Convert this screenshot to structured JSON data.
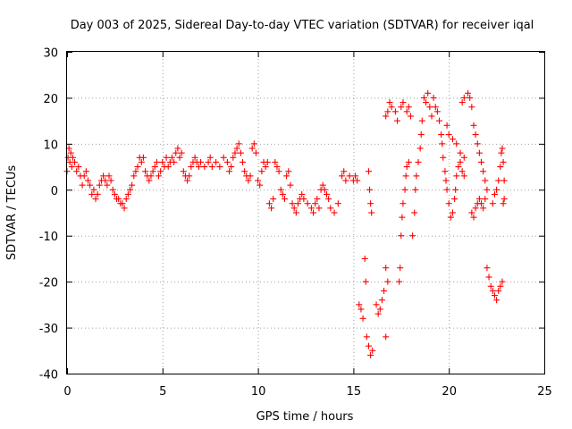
{
  "chart_data": {
    "type": "scatter",
    "title": "Day 003 of 2025, Sidereal Day-to-day VTEC variation (SDTVAR) for receiver iqal",
    "xlabel": "GPS time / hours",
    "ylabel": "SDTVAR / TECUs",
    "xlim": [
      0,
      25
    ],
    "ylim": [
      -40,
      30
    ],
    "xticks": [
      0,
      5,
      10,
      15,
      20,
      25
    ],
    "yticks": [
      -40,
      -30,
      -20,
      -10,
      0,
      10,
      20,
      30
    ],
    "grid": true,
    "marker": "+",
    "color": "#ff0000",
    "series": [
      {
        "name": "iqal",
        "points": [
          [
            0.0,
            4
          ],
          [
            0.05,
            7
          ],
          [
            0.1,
            9
          ],
          [
            0.15,
            6
          ],
          [
            0.2,
            8
          ],
          [
            0.25,
            5
          ],
          [
            0.3,
            7
          ],
          [
            0.4,
            6
          ],
          [
            0.5,
            4
          ],
          [
            0.6,
            5
          ],
          [
            0.7,
            3
          ],
          [
            0.8,
            1
          ],
          [
            0.9,
            3
          ],
          [
            1.0,
            4
          ],
          [
            1.1,
            2
          ],
          [
            1.2,
            1
          ],
          [
            1.3,
            -1
          ],
          [
            1.4,
            0
          ],
          [
            1.5,
            -2
          ],
          [
            1.6,
            -1
          ],
          [
            1.7,
            1
          ],
          [
            1.8,
            2
          ],
          [
            1.9,
            3
          ],
          [
            2.0,
            2
          ],
          [
            2.1,
            1
          ],
          [
            2.2,
            3
          ],
          [
            2.3,
            2
          ],
          [
            2.4,
            0
          ],
          [
            2.5,
            -1
          ],
          [
            2.6,
            -2
          ],
          [
            2.7,
            -2
          ],
          [
            2.8,
            -3
          ],
          [
            2.9,
            -3
          ],
          [
            3.0,
            -4
          ],
          [
            3.1,
            -2
          ],
          [
            3.2,
            -1
          ],
          [
            3.3,
            0
          ],
          [
            3.4,
            1
          ],
          [
            3.5,
            3
          ],
          [
            3.6,
            4
          ],
          [
            3.7,
            5
          ],
          [
            3.8,
            7
          ],
          [
            3.9,
            6
          ],
          [
            4.0,
            7
          ],
          [
            4.1,
            4
          ],
          [
            4.2,
            3
          ],
          [
            4.3,
            2
          ],
          [
            4.4,
            3
          ],
          [
            4.5,
            4
          ],
          [
            4.6,
            5
          ],
          [
            4.7,
            6
          ],
          [
            4.8,
            3
          ],
          [
            4.9,
            4
          ],
          [
            5.0,
            6
          ],
          [
            5.1,
            5
          ],
          [
            5.2,
            7
          ],
          [
            5.3,
            5
          ],
          [
            5.4,
            6
          ],
          [
            5.5,
            7
          ],
          [
            5.6,
            6
          ],
          [
            5.7,
            8
          ],
          [
            5.8,
            9
          ],
          [
            5.9,
            7
          ],
          [
            6.0,
            8
          ],
          [
            6.1,
            4
          ],
          [
            6.2,
            3
          ],
          [
            6.3,
            2
          ],
          [
            6.4,
            3
          ],
          [
            6.5,
            5
          ],
          [
            6.6,
            6
          ],
          [
            6.7,
            7
          ],
          [
            6.8,
            6
          ],
          [
            6.9,
            5
          ],
          [
            7.0,
            6
          ],
          [
            7.2,
            5
          ],
          [
            7.4,
            6
          ],
          [
            7.5,
            7
          ],
          [
            7.6,
            5
          ],
          [
            7.8,
            6
          ],
          [
            8.0,
            5
          ],
          [
            8.2,
            7
          ],
          [
            8.4,
            6
          ],
          [
            8.5,
            4
          ],
          [
            8.6,
            5
          ],
          [
            8.7,
            7
          ],
          [
            8.8,
            8
          ],
          [
            8.9,
            9
          ],
          [
            9.0,
            10
          ],
          [
            9.1,
            8
          ],
          [
            9.2,
            6
          ],
          [
            9.3,
            4
          ],
          [
            9.4,
            3
          ],
          [
            9.5,
            2
          ],
          [
            9.6,
            3
          ],
          [
            9.7,
            9
          ],
          [
            9.8,
            10
          ],
          [
            9.9,
            8
          ],
          [
            10.0,
            2
          ],
          [
            10.1,
            1
          ],
          [
            10.2,
            4
          ],
          [
            10.3,
            6
          ],
          [
            10.4,
            5
          ],
          [
            10.5,
            6
          ],
          [
            10.6,
            -3
          ],
          [
            10.7,
            -4
          ],
          [
            10.8,
            -2
          ],
          [
            10.9,
            6
          ],
          [
            11.0,
            5
          ],
          [
            11.1,
            4
          ],
          [
            11.2,
            0
          ],
          [
            11.3,
            -1
          ],
          [
            11.4,
            -2
          ],
          [
            11.5,
            3
          ],
          [
            11.6,
            4
          ],
          [
            11.7,
            1
          ],
          [
            11.8,
            -3
          ],
          [
            11.9,
            -4
          ],
          [
            12.0,
            -5
          ],
          [
            12.1,
            -3
          ],
          [
            12.2,
            -2
          ],
          [
            12.3,
            -1
          ],
          [
            12.4,
            -2
          ],
          [
            12.6,
            -3
          ],
          [
            12.8,
            -4
          ],
          [
            12.9,
            -5
          ],
          [
            13.0,
            -3
          ],
          [
            13.1,
            -2
          ],
          [
            13.2,
            -4
          ],
          [
            13.3,
            0
          ],
          [
            13.4,
            1
          ],
          [
            13.5,
            0
          ],
          [
            13.6,
            -1
          ],
          [
            13.7,
            -2
          ],
          [
            13.8,
            -4
          ],
          [
            14.0,
            -5
          ],
          [
            14.2,
            -3
          ],
          [
            14.4,
            3
          ],
          [
            14.5,
            4
          ],
          [
            14.6,
            2
          ],
          [
            14.8,
            3
          ],
          [
            15.0,
            2
          ],
          [
            15.1,
            3
          ],
          [
            15.2,
            2
          ],
          [
            15.3,
            -25
          ],
          [
            15.4,
            -26
          ],
          [
            15.5,
            -28
          ],
          [
            15.6,
            -15
          ],
          [
            15.65,
            -20
          ],
          [
            15.7,
            -32
          ],
          [
            15.8,
            -34
          ],
          [
            15.9,
            -36
          ],
          [
            16.0,
            -35
          ],
          [
            15.8,
            4
          ],
          [
            15.85,
            0
          ],
          [
            15.9,
            -3
          ],
          [
            15.95,
            -5
          ],
          [
            16.2,
            -25
          ],
          [
            16.3,
            -27
          ],
          [
            16.4,
            -26
          ],
          [
            16.5,
            -24
          ],
          [
            16.6,
            -22
          ],
          [
            16.7,
            -17
          ],
          [
            16.8,
            -20
          ],
          [
            16.7,
            -32
          ],
          [
            16.7,
            16
          ],
          [
            16.8,
            17
          ],
          [
            16.9,
            19
          ],
          [
            17.0,
            18
          ],
          [
            17.2,
            17
          ],
          [
            17.3,
            15
          ],
          [
            17.4,
            -20
          ],
          [
            17.45,
            -17
          ],
          [
            17.5,
            -10
          ],
          [
            17.55,
            -6
          ],
          [
            17.6,
            -3
          ],
          [
            17.7,
            0
          ],
          [
            17.75,
            3
          ],
          [
            17.8,
            5
          ],
          [
            17.9,
            6
          ],
          [
            17.5,
            18
          ],
          [
            17.6,
            19
          ],
          [
            17.8,
            17
          ],
          [
            17.9,
            18
          ],
          [
            18.0,
            16
          ],
          [
            18.1,
            -10
          ],
          [
            18.2,
            -5
          ],
          [
            18.25,
            0
          ],
          [
            18.3,
            3
          ],
          [
            18.4,
            6
          ],
          [
            18.5,
            9
          ],
          [
            18.55,
            12
          ],
          [
            18.6,
            15
          ],
          [
            18.7,
            20
          ],
          [
            18.8,
            19
          ],
          [
            18.9,
            21
          ],
          [
            19.0,
            18
          ],
          [
            19.1,
            16
          ],
          [
            19.2,
            20
          ],
          [
            19.3,
            18
          ],
          [
            19.4,
            17
          ],
          [
            19.5,
            15
          ],
          [
            19.6,
            12
          ],
          [
            19.65,
            10
          ],
          [
            19.7,
            7
          ],
          [
            19.8,
            4
          ],
          [
            19.85,
            2
          ],
          [
            19.9,
            0
          ],
          [
            20.0,
            -3
          ],
          [
            20.1,
            -6
          ],
          [
            20.2,
            -5
          ],
          [
            20.3,
            -2
          ],
          [
            20.35,
            0
          ],
          [
            20.4,
            3
          ],
          [
            20.5,
            5
          ],
          [
            20.6,
            6
          ],
          [
            20.7,
            4
          ],
          [
            20.8,
            3
          ],
          [
            19.9,
            14
          ],
          [
            20.0,
            12
          ],
          [
            20.2,
            11
          ],
          [
            20.4,
            10
          ],
          [
            20.6,
            8
          ],
          [
            20.8,
            7
          ],
          [
            20.7,
            19
          ],
          [
            20.8,
            20
          ],
          [
            21.0,
            21
          ],
          [
            21.1,
            20
          ],
          [
            21.2,
            18
          ],
          [
            21.3,
            14
          ],
          [
            21.4,
            12
          ],
          [
            21.5,
            10
          ],
          [
            21.6,
            8
          ],
          [
            21.7,
            6
          ],
          [
            21.8,
            4
          ],
          [
            21.9,
            2
          ],
          [
            22.0,
            0
          ],
          [
            21.2,
            -5
          ],
          [
            21.3,
            -6
          ],
          [
            21.4,
            -4
          ],
          [
            21.5,
            -3
          ],
          [
            21.6,
            -2
          ],
          [
            21.7,
            -3
          ],
          [
            21.8,
            -4
          ],
          [
            21.9,
            -2
          ],
          [
            22.0,
            -17
          ],
          [
            22.1,
            -19
          ],
          [
            22.2,
            -21
          ],
          [
            22.3,
            -22
          ],
          [
            22.4,
            -23
          ],
          [
            22.5,
            -24
          ],
          [
            22.6,
            -22
          ],
          [
            22.7,
            -21
          ],
          [
            22.8,
            -20
          ],
          [
            22.3,
            -3
          ],
          [
            22.4,
            -1
          ],
          [
            22.5,
            0
          ],
          [
            22.6,
            2
          ],
          [
            22.7,
            5
          ],
          [
            22.75,
            8
          ],
          [
            22.8,
            9
          ],
          [
            22.85,
            6
          ],
          [
            22.9,
            2
          ],
          [
            22.85,
            -3
          ],
          [
            22.9,
            -2
          ]
        ]
      }
    ]
  }
}
